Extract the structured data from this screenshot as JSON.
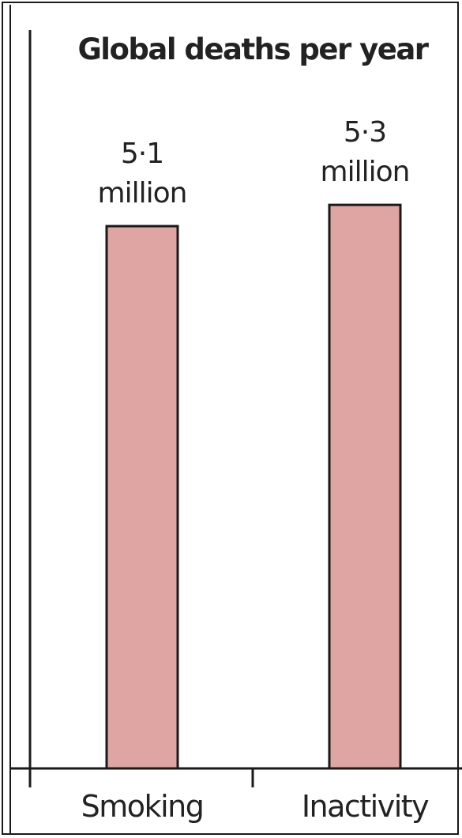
{
  "chart_data": {
    "type": "bar",
    "title": "Global deaths per year",
    "categories": [
      "Smoking",
      "Inactivity"
    ],
    "values": [
      5.1,
      5.3
    ],
    "value_labels": [
      [
        "5·1",
        "million"
      ],
      [
        "5·3",
        "million"
      ]
    ],
    "unit": "million",
    "xlabel": "",
    "ylabel": "",
    "grid": false,
    "colors": {
      "bar_fill": "#dea5a3",
      "bar_stroke": "#1a1a1a",
      "axis": "#1a1a1a"
    }
  }
}
